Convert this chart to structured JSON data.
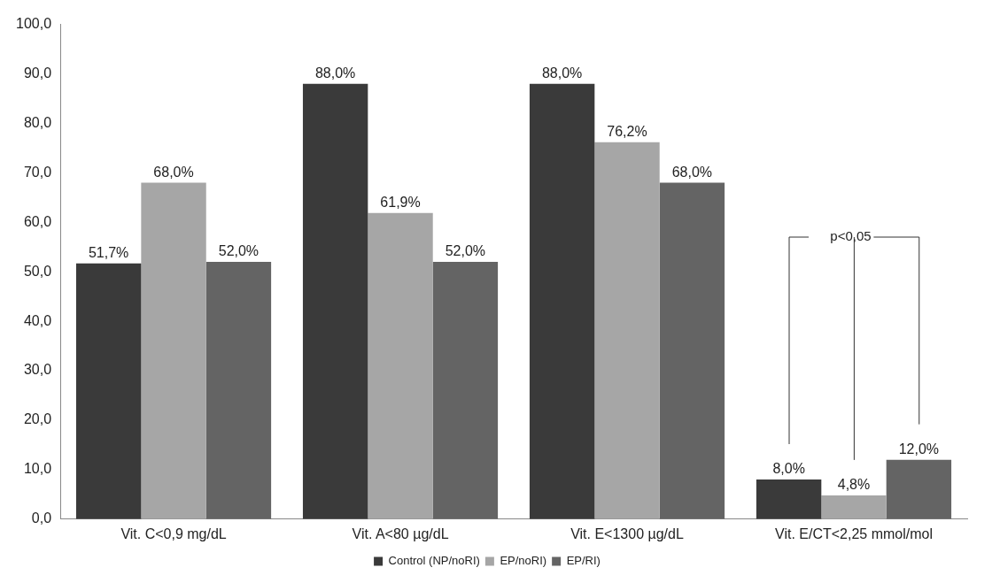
{
  "chart_data": {
    "type": "bar",
    "categories": [
      "Vit. C<0,9 mg/dL",
      "Vit. A<80 µg/dL",
      "Vit. E<1300 µg/dL",
      "Vit. E/CT<2,25 mmol/mol"
    ],
    "series": [
      {
        "name": "Control (NP/noRI)",
        "color": "#3a3a3a",
        "values": [
          51.7,
          88.0,
          88.0,
          8.0
        ],
        "value_labels": [
          "51,7%",
          "88,0%",
          "88,0%",
          "8,0%"
        ]
      },
      {
        "name": "EP/noRI)",
        "color": "#a6a6a6",
        "values": [
          68.0,
          61.9,
          76.2,
          4.8
        ],
        "value_labels": [
          "68,0%",
          "61,9%",
          "76,2%",
          "4,8%"
        ]
      },
      {
        "name": "EP/RI)",
        "color": "#646464",
        "values": [
          52.0,
          52.0,
          68.0,
          12.0
        ],
        "value_labels": [
          "52,0%",
          "52,0%",
          "68,0%",
          "12,0%"
        ]
      }
    ],
    "ylim": [
      0,
      100
    ],
    "yticks": [
      {
        "value": 0,
        "label": "0,0"
      },
      {
        "value": 10,
        "label": "10,0"
      },
      {
        "value": 20,
        "label": "20,0"
      },
      {
        "value": 30,
        "label": "30,0"
      },
      {
        "value": 40,
        "label": "40,0"
      },
      {
        "value": 50,
        "label": "50,0"
      },
      {
        "value": 60,
        "label": "60,0"
      },
      {
        "value": 70,
        "label": "70,0"
      },
      {
        "value": 80,
        "label": "80,0"
      },
      {
        "value": 90,
        "label": "90,0"
      },
      {
        "value": 100,
        "label": "100,0"
      }
    ],
    "grid": false,
    "legend": "bottom",
    "annotations": [
      "p<0,05"
    ]
  }
}
